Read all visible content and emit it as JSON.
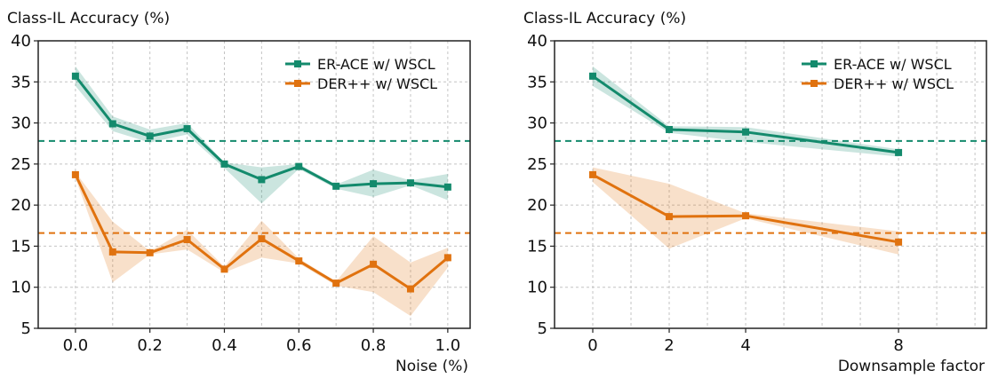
{
  "chart_data": [
    {
      "type": "line",
      "title": "",
      "ylabel": "Class-IL Accuracy (%)",
      "xlabel": "Noise (%)",
      "xlim": [
        -0.1,
        1.06
      ],
      "ylim": [
        5,
        40
      ],
      "xticks": [
        0.0,
        0.2,
        0.4,
        0.6,
        0.8,
        1.0
      ],
      "xtick_labels": [
        "0.0",
        "0.2",
        "0.4",
        "0.6",
        "0.8",
        "1.0"
      ],
      "yticks": [
        5,
        10,
        15,
        20,
        25,
        30,
        35,
        40
      ],
      "ytick_labels": [
        "5",
        "10",
        "15",
        "20",
        "25",
        "30",
        "35",
        "40"
      ],
      "minor_xgrid": [
        -0.1,
        0.1,
        0.3,
        0.5,
        0.7,
        0.9
      ],
      "grid": true,
      "legend_position": "top-right",
      "x": [
        0.0,
        0.1,
        0.2,
        0.3,
        0.4,
        0.5,
        0.6,
        0.7,
        0.8,
        0.9,
        1.0
      ],
      "series": [
        {
          "name": "ER-ACE w/ WSCL",
          "color": "#138a6c",
          "values": [
            35.7,
            29.9,
            28.4,
            29.3,
            25.0,
            23.1,
            24.7,
            22.3,
            22.6,
            22.7,
            22.2
          ],
          "upper": [
            36.9,
            30.8,
            29.2,
            30.0,
            25.2,
            24.6,
            25.0,
            22.5,
            24.3,
            23.0,
            23.8
          ],
          "lower": [
            34.5,
            29.0,
            27.6,
            28.6,
            24.5,
            20.2,
            24.4,
            22.0,
            21.0,
            22.4,
            20.6
          ]
        },
        {
          "name": "DER++ w/ WSCL",
          "color": "#e0720f",
          "values": [
            23.7,
            14.3,
            14.2,
            15.8,
            12.2,
            15.9,
            13.2,
            10.5,
            12.8,
            9.8,
            13.6
          ],
          "upper": [
            24.0,
            18.0,
            14.4,
            17.0,
            12.5,
            18.1,
            13.5,
            10.7,
            16.2,
            13.0,
            14.8
          ],
          "lower": [
            23.3,
            10.6,
            14.0,
            14.6,
            11.8,
            13.6,
            12.9,
            10.2,
            9.4,
            6.5,
            12.4
          ]
        }
      ],
      "baselines": [
        {
          "color": "#138a6c",
          "value": 27.8
        },
        {
          "color": "#e0720f",
          "value": 16.6
        }
      ]
    },
    {
      "type": "line",
      "title": "",
      "ylabel": "Class-IL Accuracy (%)",
      "xlabel": "Downsample factor",
      "xlim": [
        -1,
        10.3
      ],
      "ylim": [
        5,
        40
      ],
      "xticks": [
        0,
        2,
        4,
        8
      ],
      "xtick_labels": [
        "0",
        "2",
        "4",
        "8"
      ],
      "yticks": [
        5,
        10,
        15,
        20,
        25,
        30,
        35,
        40
      ],
      "ytick_labels": [
        "5",
        "10",
        "15",
        "20",
        "25",
        "30",
        "35",
        "40"
      ],
      "minor_xgrid": [
        -1,
        1,
        3,
        5,
        6,
        7,
        9,
        10
      ],
      "grid": true,
      "legend_position": "top-right",
      "x": [
        0,
        2,
        4,
        8
      ],
      "series": [
        {
          "name": "ER-ACE w/ WSCL",
          "color": "#138a6c",
          "values": [
            35.7,
            29.2,
            28.9,
            26.4
          ],
          "upper": [
            36.9,
            29.6,
            29.5,
            26.8
          ],
          "lower": [
            34.5,
            28.8,
            27.7,
            25.9
          ]
        },
        {
          "name": "DER++ w/ WSCL",
          "color": "#e0720f",
          "values": [
            23.7,
            18.6,
            18.7,
            15.5
          ],
          "upper": [
            24.6,
            22.6,
            19.0,
            16.8
          ],
          "lower": [
            22.8,
            14.7,
            18.4,
            14.0
          ]
        }
      ],
      "baselines": [
        {
          "color": "#138a6c",
          "value": 27.8
        },
        {
          "color": "#e0720f",
          "value": 16.6
        }
      ]
    }
  ]
}
